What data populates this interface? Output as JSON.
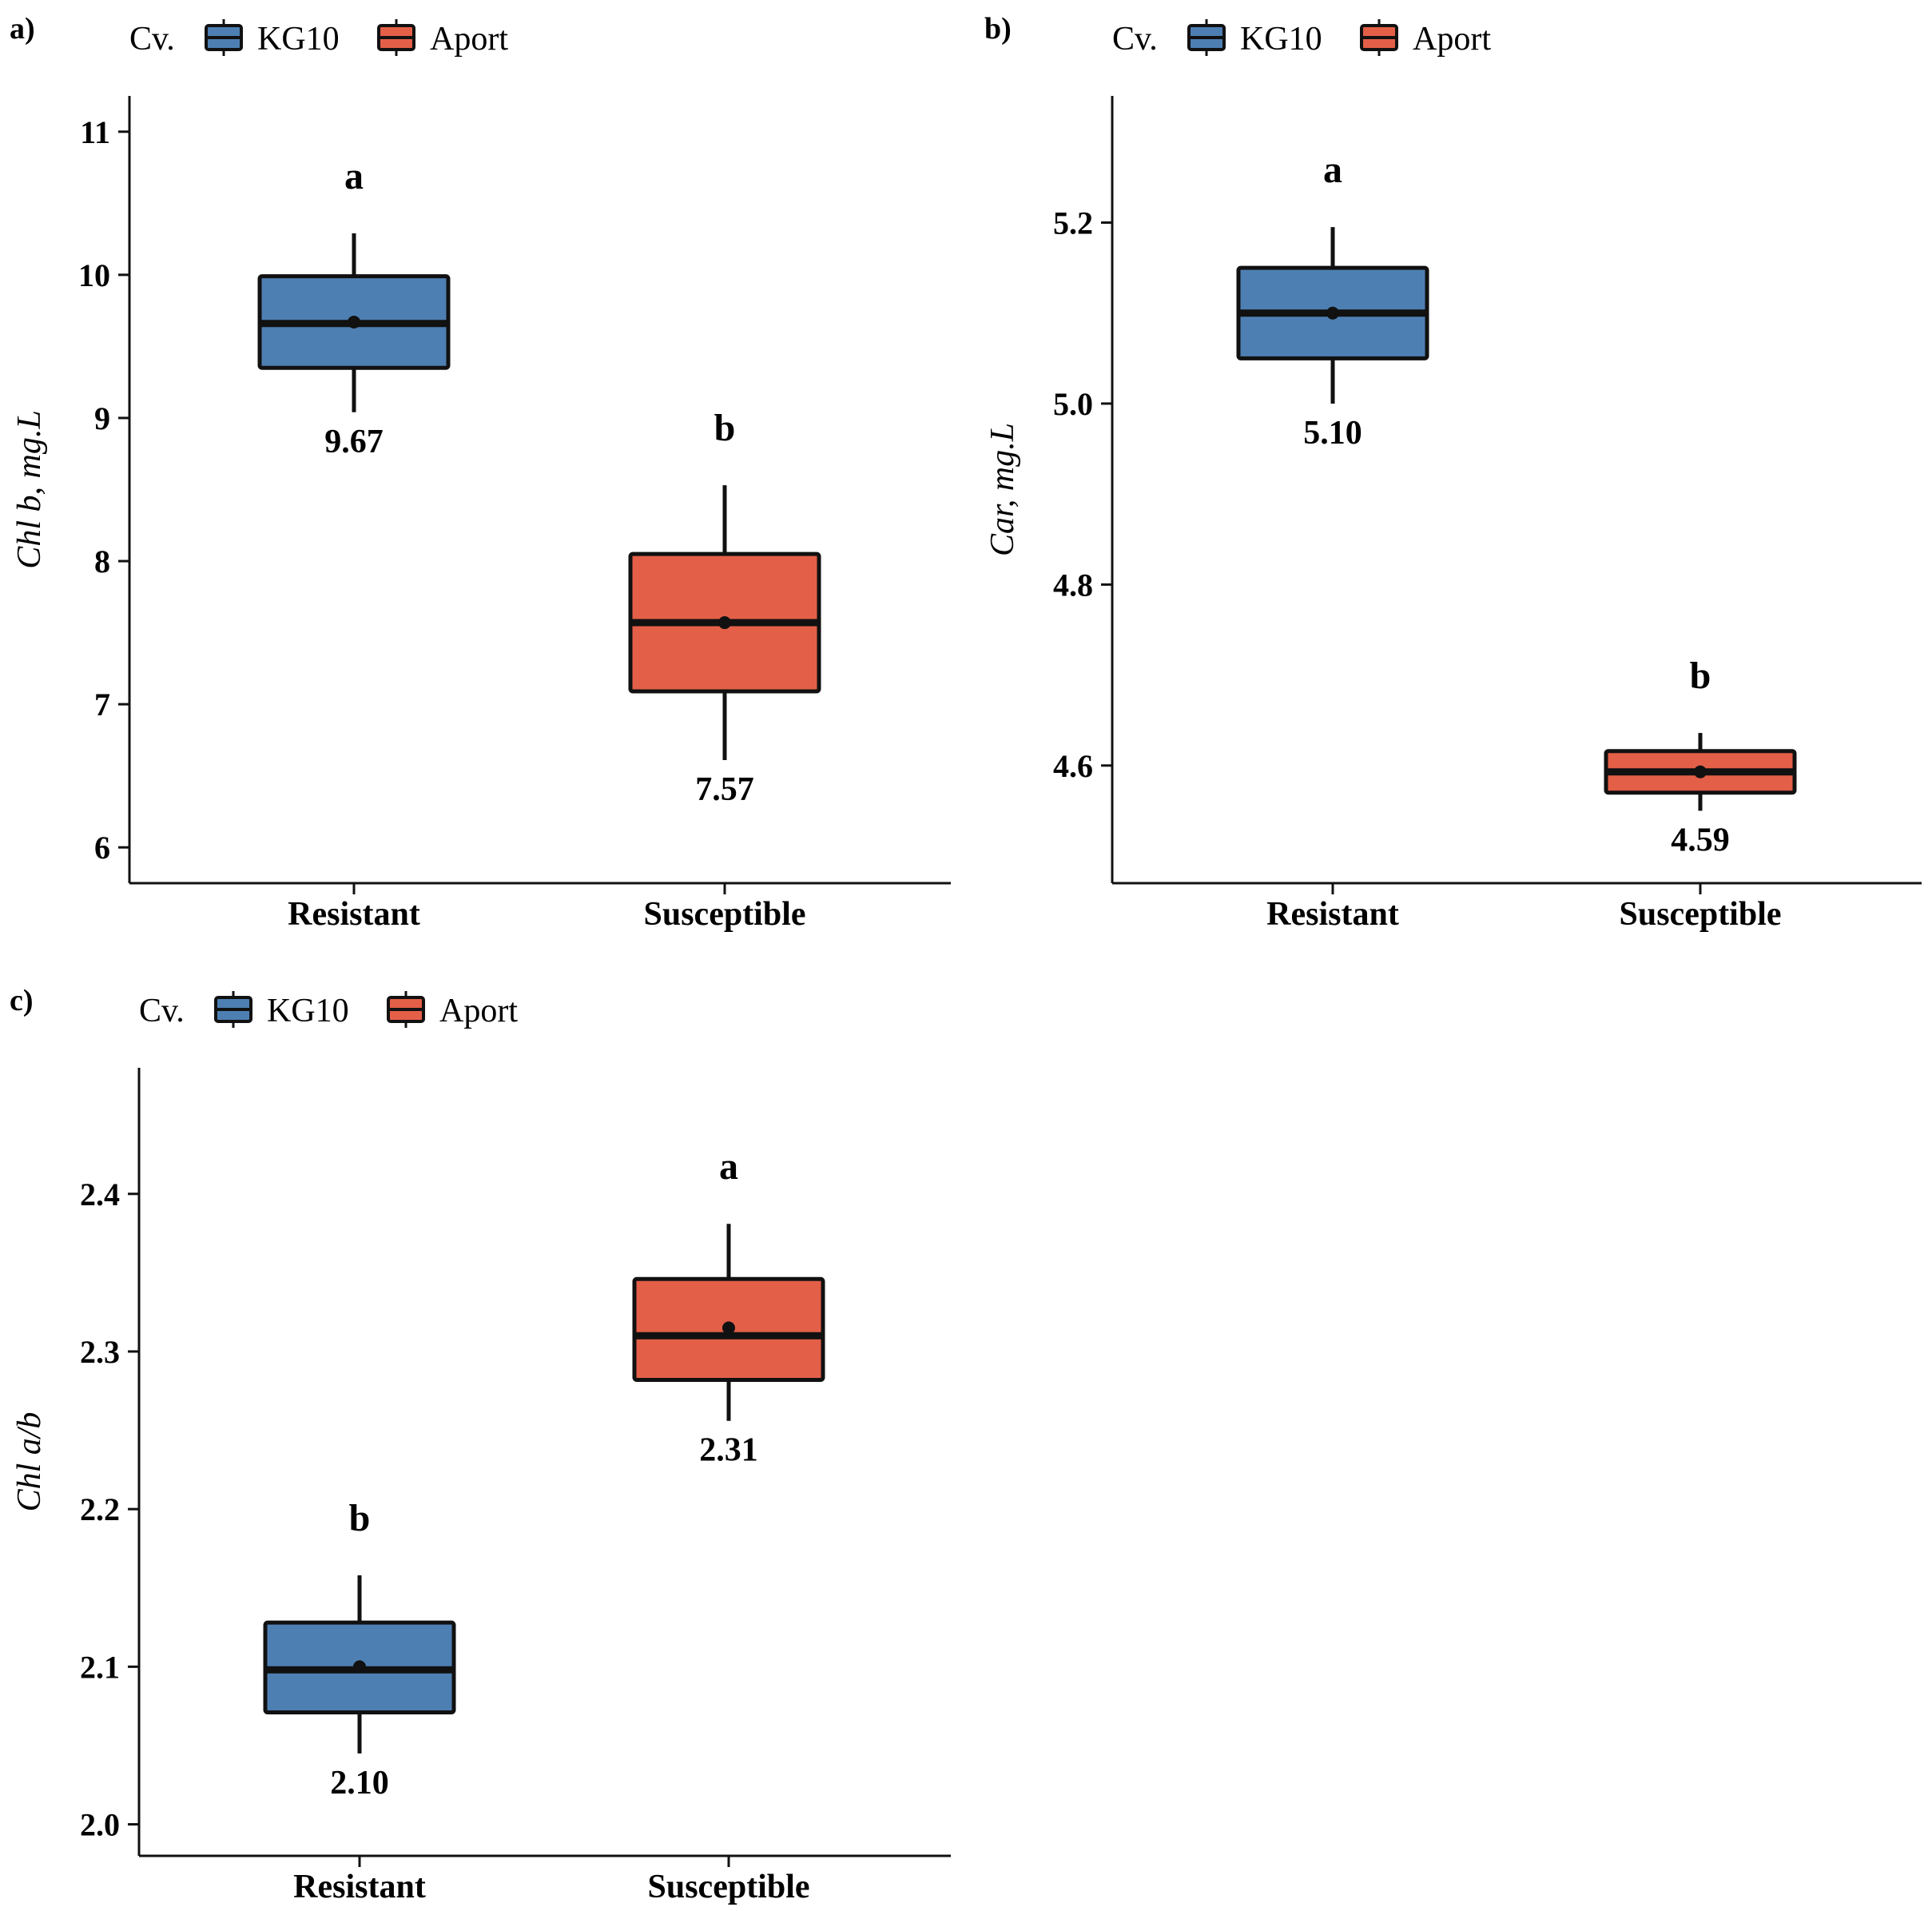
{
  "figure": {
    "legend_title": "Cv."
  },
  "colors": {
    "KG10": "#4E7FB2",
    "Aport": "#E45F48",
    "axis": "#111111"
  },
  "chart_data": [
    {
      "panel": "a)",
      "type": "box",
      "ylabel": "Chl b, mg.L",
      "ylim": [
        5.75,
        11.25
      ],
      "yticks": [
        "6",
        "7",
        "8",
        "9",
        "10",
        "11"
      ],
      "categories": [
        "Resistant",
        "Susceptible"
      ],
      "legend": [
        "KG10",
        "Aport"
      ],
      "boxes": [
        {
          "category": "Resistant",
          "series": "KG10",
          "whisker_low": 9.04,
          "q1": 9.35,
          "median": 9.66,
          "q3": 9.99,
          "whisker_high": 10.29,
          "mean": 9.67,
          "mean_label": "9.67",
          "letter": "a"
        },
        {
          "category": "Susceptible",
          "series": "Aport",
          "whisker_low": 6.61,
          "q1": 7.09,
          "median": 7.57,
          "q3": 8.05,
          "whisker_high": 8.53,
          "mean": 7.57,
          "mean_label": "7.57",
          "letter": "b"
        }
      ]
    },
    {
      "panel": "b)",
      "type": "box",
      "ylabel": "Car, mg.L",
      "ylim": [
        4.47,
        5.34
      ],
      "yticks": [
        "4.6",
        "4.8",
        "5.0",
        "5.2"
      ],
      "categories": [
        "Resistant",
        "Susceptible"
      ],
      "legend": [
        "KG10",
        "Aport"
      ],
      "boxes": [
        {
          "category": "Resistant",
          "series": "KG10",
          "whisker_low": 5.0,
          "q1": 5.05,
          "median": 5.1,
          "q3": 5.15,
          "whisker_high": 5.195,
          "mean": 5.1,
          "mean_label": "5.10",
          "letter": "a"
        },
        {
          "category": "Susceptible",
          "series": "Aport",
          "whisker_low": 4.55,
          "q1": 4.57,
          "median": 4.593,
          "q3": 4.616,
          "whisker_high": 4.636,
          "mean": 4.593,
          "mean_label": "4.59",
          "letter": "b"
        }
      ]
    },
    {
      "panel": "c)",
      "type": "box",
      "ylabel": "Chl a/b",
      "ylim": [
        1.98,
        2.48
      ],
      "yticks": [
        "2.0",
        "2.1",
        "2.2",
        "2.3",
        "2.4"
      ],
      "categories": [
        "Resistant",
        "Susceptible"
      ],
      "legend": [
        "KG10",
        "Aport"
      ],
      "boxes": [
        {
          "category": "Resistant",
          "series": "KG10",
          "whisker_low": 2.045,
          "q1": 2.071,
          "median": 2.098,
          "q3": 2.128,
          "whisker_high": 2.158,
          "mean": 2.1,
          "mean_label": "2.10",
          "letter": "b"
        },
        {
          "category": "Susceptible",
          "series": "Aport",
          "whisker_low": 2.256,
          "q1": 2.282,
          "median": 2.31,
          "q3": 2.346,
          "whisker_high": 2.381,
          "mean": 2.315,
          "mean_label": "2.31",
          "letter": "a"
        }
      ]
    }
  ]
}
